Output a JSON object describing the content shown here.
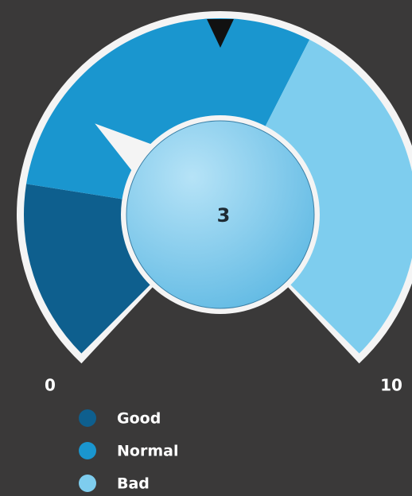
{
  "chart_data": {
    "type": "gauge",
    "value": 3,
    "range": [
      0,
      10
    ],
    "bands": [
      {
        "name": "Good",
        "color": "#0e5f8e",
        "from": 0,
        "to": 2
      },
      {
        "name": "Normal",
        "color": "#1a96cf",
        "from": 2,
        "to": 6
      },
      {
        "name": "Bad",
        "color": "#7ecdee",
        "from": 6,
        "to": 10
      }
    ]
  }
}
